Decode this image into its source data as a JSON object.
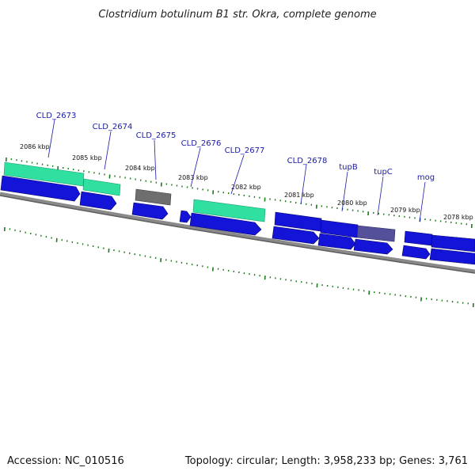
{
  "title": "Clostridium botulinum B1 str. Okra, complete genome",
  "footer": {
    "accession": "Accession: NC_010516",
    "summary": "Topology: circular; Length: 3,958,233 bp; Genes: 3,761"
  },
  "colors": {
    "cds_blue": "#0f0fdc",
    "gene_green": "#2fe0a0",
    "gene_gray": "#6e6e6e",
    "gene_purple": "#55509a",
    "backbone": "#7a7a7a",
    "tick_green": "#1a7a1a",
    "label_blue": "#1a1aa8"
  },
  "scale": {
    "labels": [
      "2086 kbp",
      "2085 kbp",
      "2084 kbp",
      "2083 kbp",
      "2082 kbp",
      "2081 kbp",
      "2080 kbp",
      "2079 kbp",
      "2078 kbp"
    ]
  },
  "genes": [
    {
      "name": "CLD_2673"
    },
    {
      "name": "CLD_2674"
    },
    {
      "name": "CLD_2675"
    },
    {
      "name": "CLD_2676"
    },
    {
      "name": "CLD_2677"
    },
    {
      "name": "CLD_2678"
    },
    {
      "name": "tupB"
    },
    {
      "name": "tupC"
    },
    {
      "name": "mog"
    }
  ]
}
